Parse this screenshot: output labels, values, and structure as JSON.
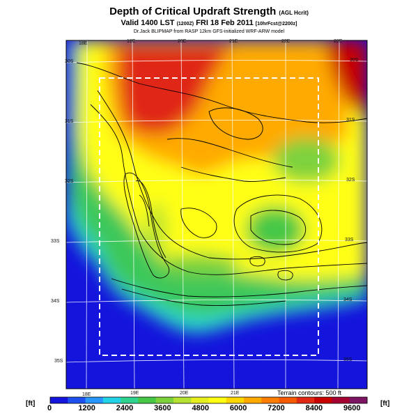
{
  "title": {
    "main": "Depth of Critical Updraft Strength",
    "main_suffix": "(AGL Hcrit)",
    "valid": "Valid 1400 LST",
    "valid_utc": "(1200Z)",
    "date": "FRI 18 Feb 2011",
    "forecast": "[10hrFcst@2200z]",
    "credit": "Dr.Jack BLIPMAP from RASP 12km GFS-initialized WRF-ARW model"
  },
  "map": {
    "lon_ticks": [
      "18E",
      "19E",
      "20E",
      "21E",
      "22E",
      "23E"
    ],
    "lat_ticks": [
      "30S",
      "31S",
      "32S",
      "33S",
      "34S",
      "35S"
    ],
    "contour_note": "Terrain contours: 500 ft"
  },
  "colorbar": {
    "unit": "[ft]",
    "labels": [
      "0",
      "1200",
      "2400",
      "3600",
      "4800",
      "6000",
      "7200",
      "8400",
      "9600"
    ],
    "colors": [
      "#1414dc",
      "#1e50f0",
      "#2896ff",
      "#22d2e6",
      "#30d290",
      "#46c846",
      "#7dd23c",
      "#b4e132",
      "#e6f01e",
      "#ffff14",
      "#ffd700",
      "#ffaa00",
      "#ff7d00",
      "#f55a00",
      "#e02814",
      "#c80000",
      "#a50032",
      "#7d1464"
    ]
  }
}
